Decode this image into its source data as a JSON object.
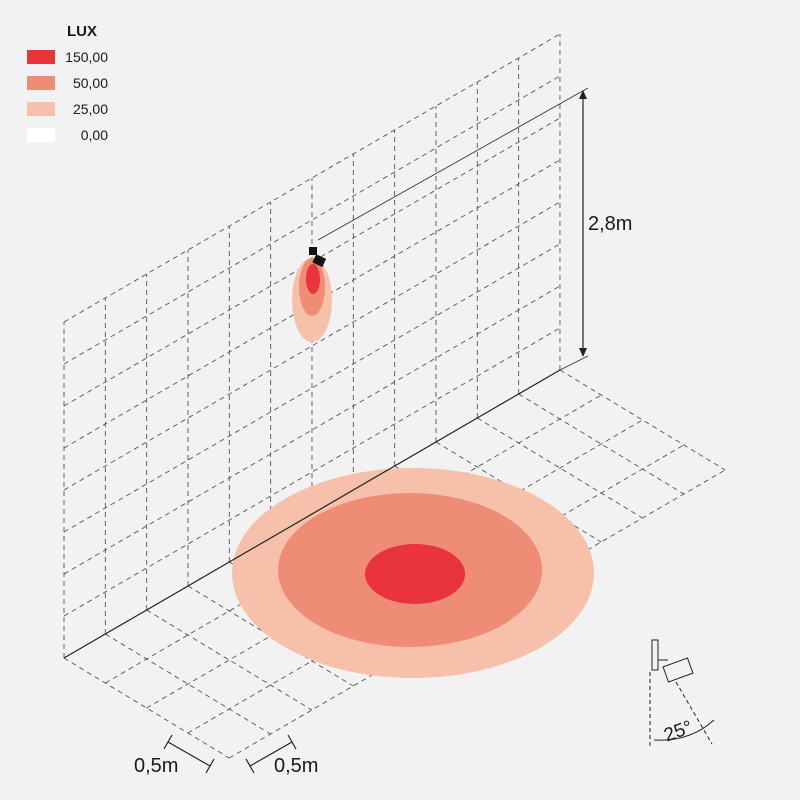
{
  "legend": {
    "title": "LUX",
    "items": [
      {
        "label": "150,00",
        "color": "#e8343a"
      },
      {
        "label": "50,00",
        "color": "#ee8c76"
      },
      {
        "label": "25,00",
        "color": "#f7c0ab"
      },
      {
        "label": "0,00",
        "color": "#ffffff"
      }
    ]
  },
  "dimensions": {
    "height": "2,8m",
    "grid_x": "0,5m",
    "grid_y": "0,5m",
    "beam_angle": "25°"
  }
}
